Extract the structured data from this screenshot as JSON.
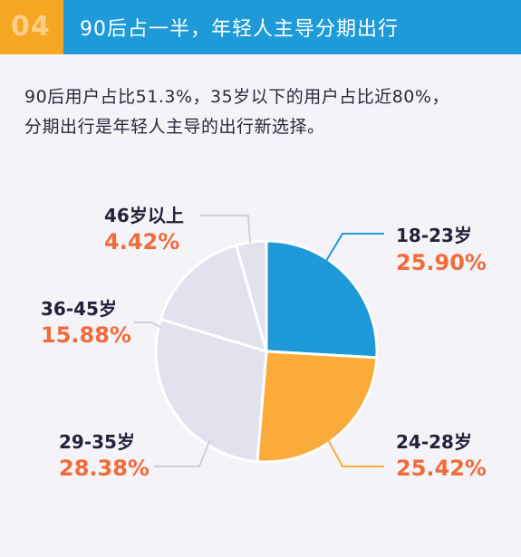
{
  "header": {
    "badge": "04",
    "title": "90后占一半，年轻人主导分期出行"
  },
  "intro": {
    "line1": "90后用户占比51.3%，35岁以下的用户占比近80%，",
    "line2": "分期出行是年轻人主导的出行新选择。"
  },
  "chart_data": {
    "type": "pie",
    "slices": [
      {
        "label": "18-23岁",
        "percent_label": "25.90%",
        "value": 25.9,
        "color": "#1e9ad8"
      },
      {
        "label": "24-28岁",
        "percent_label": "25.42%",
        "value": 25.42,
        "color": "#fbab3a"
      },
      {
        "label": "29-35岁",
        "percent_label": "28.38%",
        "value": 28.38,
        "color": "#e2e2ee"
      },
      {
        "label": "36-45岁",
        "percent_label": "15.88%",
        "value": 15.88,
        "color": "#e2e2ee"
      },
      {
        "label": "46岁以上",
        "percent_label": "4.42%",
        "value": 4.42,
        "color": "#e2e2ee"
      }
    ],
    "start_angle": "12 o'clock",
    "direction": "clockwise"
  },
  "colors": {
    "banner": "#1e9ad8",
    "badge": "#f5a623",
    "percent_text": "#f26b3a",
    "leader_line_highlight": "#1e9ad8",
    "leader_line_orange": "#fbab3a",
    "leader_line_gray": "#d0d0dc"
  }
}
